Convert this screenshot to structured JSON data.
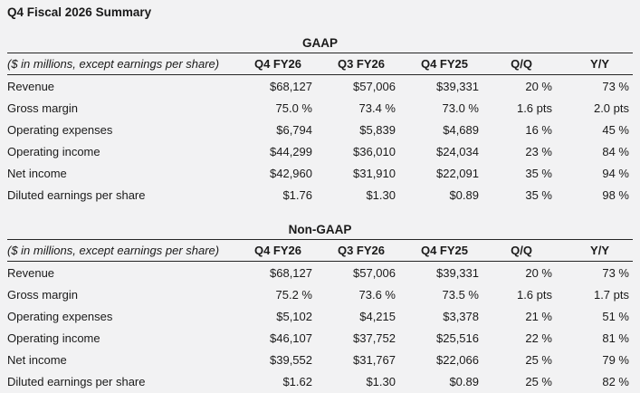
{
  "page": {
    "title": "Q4 Fiscal 2026 Summary"
  },
  "colors": {
    "background": "#f2f2f3",
    "text": "#1a1a1a",
    "table_border": "#262626"
  },
  "tables": [
    {
      "section": "GAAP",
      "note": "($ in millions, except earnings per share)",
      "columns": [
        "Q4 FY26",
        "Q3 FY26",
        "Q4 FY25",
        "Q/Q",
        "Y/Y"
      ],
      "rows": [
        {
          "label": "Revenue",
          "values": [
            "$68,127",
            "$57,006",
            "$39,331",
            "20 %",
            "73 %"
          ]
        },
        {
          "label": "Gross margin",
          "values": [
            "75.0 %",
            "73.4 %",
            "73.0 %",
            "1.6 pts",
            "2.0 pts"
          ]
        },
        {
          "label": "Operating expenses",
          "values": [
            "$6,794",
            "$5,839",
            "$4,689",
            "16 %",
            "45 %"
          ]
        },
        {
          "label": "Operating income",
          "values": [
            "$44,299",
            "$36,010",
            "$24,034",
            "23 %",
            "84 %"
          ]
        },
        {
          "label": "Net income",
          "values": [
            "$42,960",
            "$31,910",
            "$22,091",
            "35 %",
            "94 %"
          ]
        },
        {
          "label": "Diluted earnings per share",
          "values": [
            "$1.76",
            "$1.30",
            "$0.89",
            "35 %",
            "98 %"
          ]
        }
      ]
    },
    {
      "section": "Non-GAAP",
      "note": "($ in millions, except earnings per share)",
      "columns": [
        "Q4 FY26",
        "Q3 FY26",
        "Q4 FY25",
        "Q/Q",
        "Y/Y"
      ],
      "rows": [
        {
          "label": "Revenue",
          "values": [
            "$68,127",
            "$57,006",
            "$39,331",
            "20 %",
            "73 %"
          ]
        },
        {
          "label": "Gross margin",
          "values": [
            "75.2 %",
            "73.6 %",
            "73.5 %",
            "1.6 pts",
            "1.7 pts"
          ]
        },
        {
          "label": "Operating expenses",
          "values": [
            "$5,102",
            "$4,215",
            "$3,378",
            "21 %",
            "51 %"
          ]
        },
        {
          "label": "Operating income",
          "values": [
            "$46,107",
            "$37,752",
            "$25,516",
            "22 %",
            "81 %"
          ]
        },
        {
          "label": "Net income",
          "values": [
            "$39,552",
            "$31,767",
            "$22,066",
            "25 %",
            "79 %"
          ]
        },
        {
          "label": "Diluted earnings per share",
          "values": [
            "$1.62",
            "$1.30",
            "$0.89",
            "25 %",
            "82 %"
          ]
        }
      ]
    }
  ]
}
